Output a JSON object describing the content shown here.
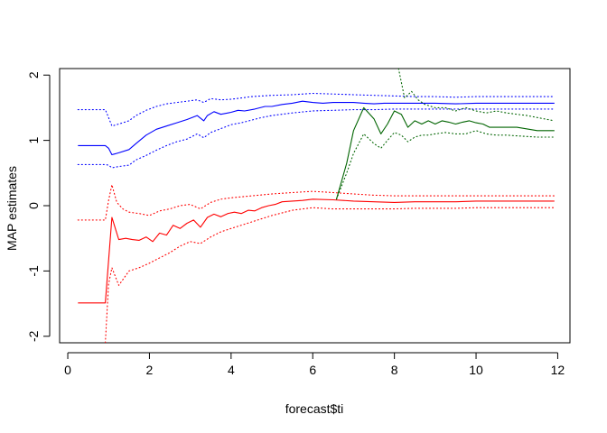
{
  "chart_data": {
    "type": "line",
    "xlabel": "forecast$ti",
    "ylabel": "MAP estimates",
    "xlim": [
      -0.2,
      12.3
    ],
    "ylim": [
      -2.1,
      2.1
    ],
    "x_ticks": [
      0,
      2,
      4,
      6,
      8,
      10,
      12
    ],
    "y_ticks": [
      -2,
      -1,
      0,
      1,
      2
    ],
    "x_tick_labels": [
      "0",
      "2",
      "4",
      "6",
      "8",
      "10",
      "12"
    ],
    "y_tick_labels": [
      "-2",
      "-1",
      "0",
      "1",
      "2"
    ],
    "grid": false,
    "series": [
      {
        "color": "#0000ff",
        "style": "solid",
        "x": [
          0.25,
          0.92,
          1.0,
          1.08,
          1.25,
          1.5,
          1.67,
          1.92,
          2.17,
          2.42,
          2.67,
          2.92,
          3.17,
          3.33,
          3.42,
          3.58,
          3.75,
          4.0,
          4.17,
          4.33,
          4.58,
          4.83,
          5.0,
          5.25,
          5.5,
          5.75,
          6.0,
          6.25,
          6.5,
          6.75,
          7.0,
          7.25,
          7.5,
          7.75,
          8.0,
          8.5,
          9.0,
          9.5,
          10.0,
          10.5,
          11.0,
          11.5,
          11.92
        ],
        "y": [
          0.92,
          0.92,
          0.88,
          0.78,
          0.81,
          0.86,
          0.95,
          1.08,
          1.17,
          1.22,
          1.27,
          1.32,
          1.38,
          1.3,
          1.38,
          1.44,
          1.4,
          1.43,
          1.46,
          1.45,
          1.48,
          1.52,
          1.52,
          1.55,
          1.57,
          1.6,
          1.58,
          1.57,
          1.58,
          1.58,
          1.58,
          1.57,
          1.56,
          1.57,
          1.57,
          1.57,
          1.57,
          1.56,
          1.57,
          1.57,
          1.57,
          1.57,
          1.57
        ]
      },
      {
        "color": "#0000ff",
        "style": "dotted",
        "x": [
          0.25,
          0.92,
          1.0,
          1.08,
          1.25,
          1.5,
          1.67,
          1.92,
          2.17,
          2.42,
          2.67,
          2.92,
          3.17,
          3.33,
          3.5,
          3.75,
          4.0,
          4.25,
          4.5,
          4.75,
          5.0,
          5.5,
          6.0,
          6.5,
          7.0,
          7.5,
          8.0,
          8.5,
          9.0,
          9.5,
          10.0,
          10.5,
          11.0,
          11.5,
          11.92
        ],
        "y": [
          1.47,
          1.47,
          1.35,
          1.22,
          1.25,
          1.3,
          1.38,
          1.46,
          1.52,
          1.56,
          1.58,
          1.6,
          1.62,
          1.58,
          1.64,
          1.62,
          1.63,
          1.65,
          1.67,
          1.68,
          1.69,
          1.7,
          1.72,
          1.71,
          1.7,
          1.69,
          1.68,
          1.67,
          1.67,
          1.66,
          1.67,
          1.67,
          1.67,
          1.67,
          1.67
        ]
      },
      {
        "color": "#0000ff",
        "style": "dotted",
        "x": [
          0.25,
          0.92,
          1.0,
          1.08,
          1.25,
          1.5,
          1.67,
          1.92,
          2.17,
          2.42,
          2.67,
          2.92,
          3.17,
          3.33,
          3.5,
          3.75,
          4.0,
          4.25,
          4.5,
          4.75,
          5.0,
          5.5,
          6.0,
          6.5,
          7.0,
          7.5,
          8.0,
          8.5,
          9.0,
          9.5,
          10.0,
          10.5,
          11.0,
          11.5,
          11.92
        ],
        "y": [
          0.63,
          0.63,
          0.62,
          0.58,
          0.6,
          0.62,
          0.7,
          0.77,
          0.85,
          0.92,
          0.98,
          1.02,
          1.1,
          1.04,
          1.12,
          1.18,
          1.24,
          1.27,
          1.31,
          1.35,
          1.38,
          1.42,
          1.45,
          1.46,
          1.47,
          1.47,
          1.48,
          1.48,
          1.48,
          1.48,
          1.48,
          1.48,
          1.48,
          1.48,
          1.48
        ]
      },
      {
        "color": "#ff0000",
        "style": "solid",
        "x": [
          0.25,
          0.92,
          1.08,
          1.25,
          1.42,
          1.58,
          1.75,
          1.92,
          2.08,
          2.25,
          2.42,
          2.58,
          2.75,
          2.92,
          3.08,
          3.25,
          3.42,
          3.58,
          3.75,
          3.92,
          4.08,
          4.25,
          4.42,
          4.58,
          4.75,
          4.92,
          5.08,
          5.25,
          5.5,
          5.75,
          6.0,
          6.5,
          7.0,
          7.5,
          8.0,
          8.5,
          9.0,
          9.5,
          10.0,
          10.5,
          11.0,
          11.5,
          11.92
        ],
        "y": [
          -1.49,
          -1.49,
          -0.18,
          -0.52,
          -0.5,
          -0.52,
          -0.53,
          -0.48,
          -0.55,
          -0.42,
          -0.45,
          -0.3,
          -0.35,
          -0.27,
          -0.22,
          -0.33,
          -0.18,
          -0.13,
          -0.17,
          -0.12,
          -0.1,
          -0.12,
          -0.07,
          -0.08,
          -0.03,
          0.0,
          0.02,
          0.06,
          0.07,
          0.08,
          0.1,
          0.09,
          0.07,
          0.06,
          0.05,
          0.06,
          0.06,
          0.06,
          0.07,
          0.07,
          0.07,
          0.07,
          0.07
        ]
      },
      {
        "color": "#ff0000",
        "style": "dotted",
        "x": [
          0.25,
          0.92,
          1.0,
          1.08,
          1.2,
          1.35,
          1.5,
          1.75,
          2.0,
          2.25,
          2.5,
          2.75,
          3.0,
          3.25,
          3.5,
          3.75,
          4.0,
          4.5,
          5.0,
          5.5,
          6.0,
          6.5,
          7.0,
          7.5,
          8.0,
          8.5,
          9.0,
          9.5,
          10.0,
          10.5,
          11.0,
          11.5,
          11.92
        ],
        "y": [
          -0.22,
          -0.22,
          0.08,
          0.32,
          0.05,
          -0.05,
          -0.1,
          -0.12,
          -0.15,
          -0.08,
          -0.05,
          0.0,
          0.02,
          -0.05,
          0.05,
          0.1,
          0.12,
          0.15,
          0.18,
          0.2,
          0.22,
          0.2,
          0.18,
          0.16,
          0.15,
          0.15,
          0.15,
          0.15,
          0.15,
          0.15,
          0.15,
          0.15,
          0.15
        ]
      },
      {
        "color": "#ff0000",
        "style": "dotted",
        "x": [
          0.92,
          1.0,
          1.08,
          1.25,
          1.5,
          1.75,
          2.0,
          2.25,
          2.5,
          2.75,
          3.0,
          3.25,
          3.5,
          3.75,
          4.0,
          4.5,
          5.0,
          5.5,
          6.0,
          6.5,
          7.0,
          7.5,
          8.0,
          8.5,
          9.0,
          9.5,
          10.0,
          10.5,
          11.0,
          11.5,
          11.92
        ],
        "y": [
          -2.1,
          -1.2,
          -0.95,
          -1.22,
          -1.0,
          -0.95,
          -0.88,
          -0.8,
          -0.72,
          -0.62,
          -0.55,
          -0.58,
          -0.48,
          -0.4,
          -0.35,
          -0.25,
          -0.15,
          -0.07,
          -0.03,
          -0.05,
          -0.05,
          -0.05,
          -0.05,
          -0.04,
          -0.04,
          -0.04,
          -0.03,
          -0.03,
          -0.03,
          -0.03,
          -0.03
        ]
      },
      {
        "color": "#006400",
        "style": "solid",
        "x": [
          6.58,
          6.83,
          7.0,
          7.25,
          7.5,
          7.67,
          7.83,
          8.0,
          8.17,
          8.33,
          8.5,
          8.67,
          8.83,
          9.0,
          9.17,
          9.33,
          9.5,
          9.67,
          9.83,
          10.0,
          10.17,
          10.33,
          10.5,
          11.0,
          11.5,
          11.92
        ],
        "y": [
          0.1,
          0.65,
          1.15,
          1.5,
          1.33,
          1.1,
          1.25,
          1.45,
          1.4,
          1.2,
          1.3,
          1.25,
          1.3,
          1.25,
          1.3,
          1.28,
          1.25,
          1.28,
          1.3,
          1.27,
          1.25,
          1.2,
          1.2,
          1.2,
          1.15,
          1.15
        ]
      },
      {
        "color": "#006400",
        "style": "dotted",
        "x": [
          6.58,
          6.83,
          7.0,
          7.25,
          7.5,
          7.67,
          7.83,
          8.0,
          8.17,
          8.33,
          8.5,
          8.67,
          8.83,
          9.0,
          9.25,
          9.5,
          9.75,
          10.0,
          10.25,
          10.5,
          10.75,
          11.0,
          11.25,
          11.5,
          11.92
        ],
        "y": [
          0.1,
          0.5,
          0.8,
          1.1,
          0.95,
          0.88,
          1.0,
          1.12,
          1.08,
          0.98,
          1.05,
          1.08,
          1.08,
          1.1,
          1.12,
          1.1,
          1.1,
          1.15,
          1.1,
          1.08,
          1.08,
          1.07,
          1.06,
          1.05,
          1.05
        ]
      },
      {
        "color": "#006400",
        "style": "dotted",
        "x": [
          8.1,
          8.25,
          8.42,
          8.58,
          8.75,
          9.0,
          9.25,
          9.5,
          9.75,
          10.0,
          10.25,
          10.5,
          10.75,
          11.0,
          11.25,
          11.5,
          11.92
        ],
        "y": [
          2.1,
          1.65,
          1.75,
          1.62,
          1.55,
          1.5,
          1.5,
          1.45,
          1.5,
          1.45,
          1.42,
          1.45,
          1.42,
          1.4,
          1.38,
          1.35,
          1.3
        ]
      }
    ]
  }
}
